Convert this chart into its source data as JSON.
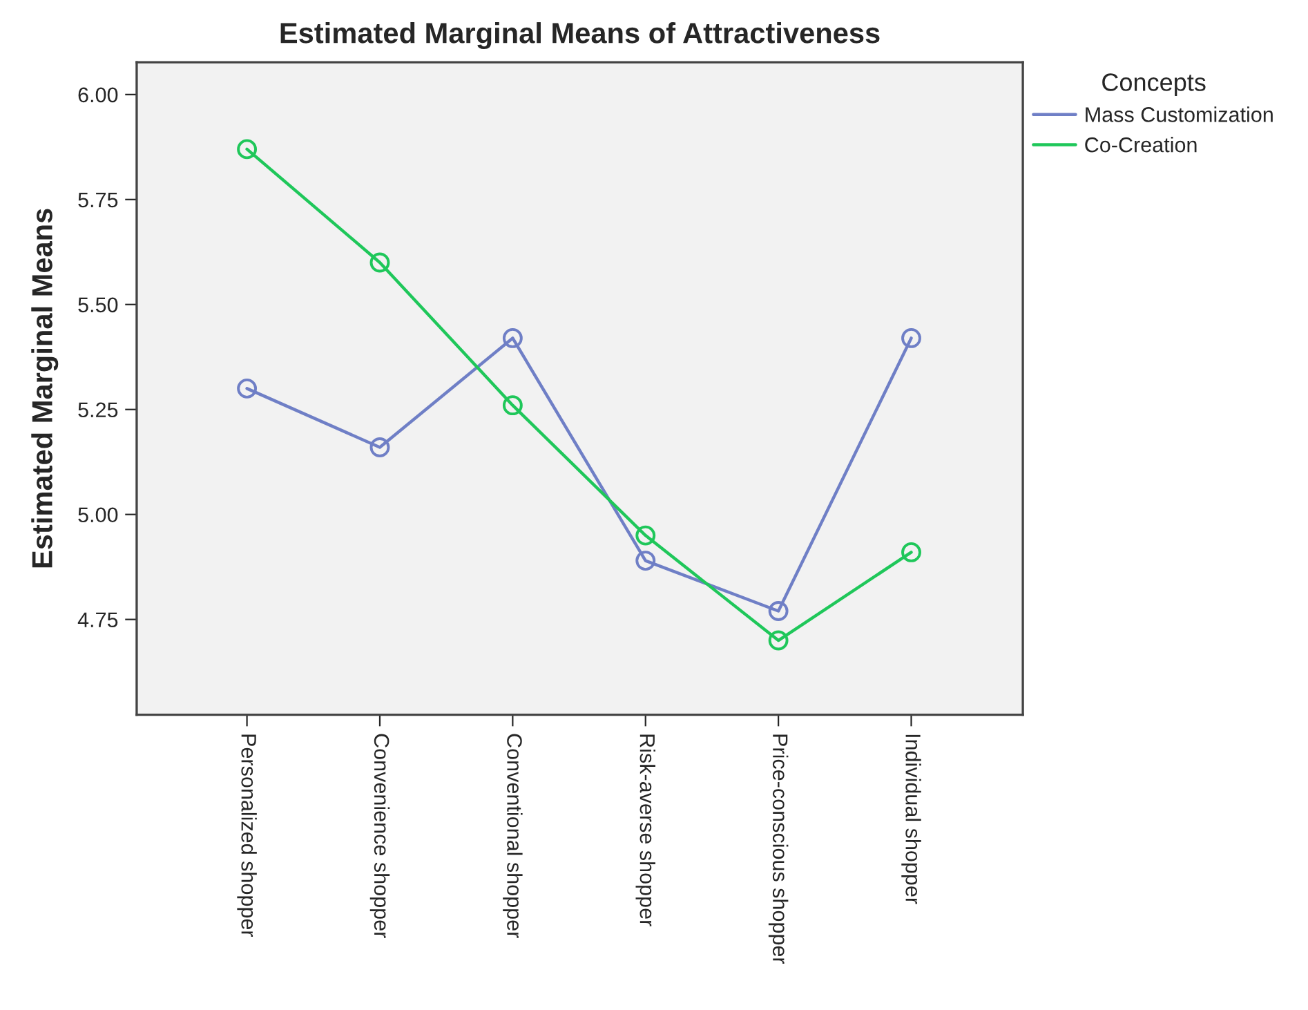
{
  "chart_data": {
    "type": "line",
    "title": "Estimated Marginal Means of Attractiveness",
    "ylabel": "Estimated Marginal Means",
    "legend_title": "Concepts",
    "categories": [
      "Personalized shopper",
      "Convenience shopper",
      "Conventional shopper",
      "Risk-averse shopper",
      "Price-conscious shopper",
      "Individual shopper"
    ],
    "series": [
      {
        "name": "Mass Customization",
        "color": "#6f7fc6",
        "values": [
          5.3,
          5.16,
          5.42,
          4.89,
          4.77,
          5.42
        ]
      },
      {
        "name": "Co-Creation",
        "color": "#1fc75a",
        "values": [
          5.87,
          5.6,
          5.26,
          4.95,
          4.7,
          4.91
        ]
      }
    ],
    "ylim": [
      4.523,
      6.077
    ],
    "yticks": [
      {
        "value": 6,
        "label": "6.00"
      },
      {
        "value": 5.75,
        "label": "5.75"
      },
      {
        "value": 5.5,
        "label": "5.50"
      },
      {
        "value": 5.25,
        "label": "5.25"
      },
      {
        "value": 5,
        "label": "5.00"
      },
      {
        "value": 4.75,
        "label": "4.75"
      }
    ],
    "grid": false,
    "legend": "top right",
    "marker": "circle",
    "line_style": "solid"
  }
}
